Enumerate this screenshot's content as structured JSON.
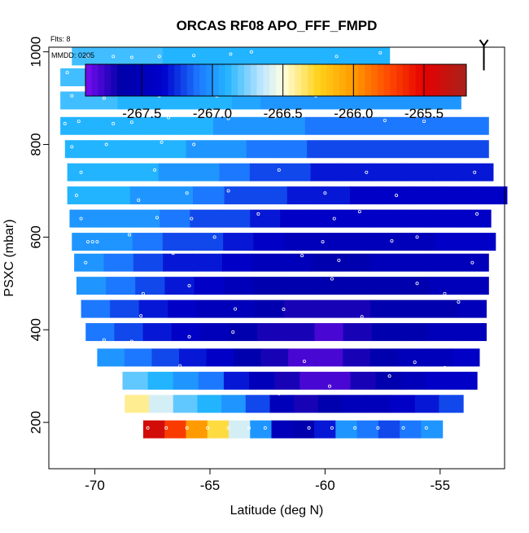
{
  "chart_data": {
    "type": "heatmap",
    "title": "ORCAS RF08 APO_FFF_FMPD",
    "subtitle": "Flts: 8",
    "annotation": "MMDD: 0205",
    "xlabel": "Latitude (deg N)",
    "ylabel": "PSXC (mbar)",
    "xlim": [
      -72,
      -52.2
    ],
    "ylim": [
      1010,
      100
    ],
    "x_ticks": [
      -70,
      -65,
      -60,
      -55
    ],
    "x_tick_labels": [
      "-70",
      "-65",
      "-60",
      "-55"
    ],
    "y_ticks": [
      200,
      400,
      600,
      800,
      1000
    ],
    "y_tick_labels": [
      "200",
      "400",
      "600",
      "800",
      "1000"
    ],
    "colorbar": {
      "range": [
        -267.9,
        -265.2
      ],
      "ticks": [
        -267.5,
        -267.0,
        -266.5,
        -266.0,
        -265.5
      ],
      "tick_labels": [
        "-267.5",
        "-267.0",
        "-266.5",
        "-266.0",
        "-265.5"
      ],
      "stops": [
        {
          "v": -267.9,
          "color": "#7a0cf0"
        },
        {
          "v": -267.65,
          "color": "#0000a8"
        },
        {
          "v": -267.35,
          "color": "#0000cc"
        },
        {
          "v": -267.1,
          "color": "#1c78ff"
        },
        {
          "v": -266.9,
          "color": "#22b4ff"
        },
        {
          "v": -266.65,
          "color": "#bfe6ff"
        },
        {
          "v": -266.5,
          "color": "#ffffe0"
        },
        {
          "v": -266.25,
          "color": "#ffd21a"
        },
        {
          "v": -266.0,
          "color": "#ff9a00"
        },
        {
          "v": -265.75,
          "color": "#ff4a00"
        },
        {
          "v": -265.5,
          "color": "#e60000"
        },
        {
          "v": -265.2,
          "color": "#a8231c"
        }
      ]
    },
    "bands": [
      {
        "p": 185,
        "x_start": -67.9,
        "x_end": -54.9,
        "values": [
          -265.4,
          -265.7,
          -266.0,
          -266.3,
          -266.6,
          -267.0,
          -267.5,
          -267.6,
          -267.3,
          -267.0,
          -267.1,
          -267.2,
          -267.1,
          -267.0
        ]
      },
      {
        "p": 240,
        "x_start": -68.7,
        "x_end": -54.0,
        "values": [
          -266.4,
          -266.6,
          -266.8,
          -266.9,
          -267.0,
          -267.2,
          -267.5,
          -267.7,
          -267.6,
          -267.5,
          -267.5,
          -267.4,
          -267.3,
          -267.2
        ]
      },
      {
        "p": 290,
        "x_start": -68.8,
        "x_end": -53.4,
        "values": [
          -266.8,
          -266.9,
          -267.0,
          -267.1,
          -267.3,
          -267.5,
          -267.7,
          -267.8,
          -267.8,
          -267.7,
          -267.6,
          -267.5,
          -267.4,
          -267.4
        ]
      },
      {
        "p": 340,
        "x_start": -69.9,
        "x_end": -53.3,
        "values": [
          -267.0,
          -267.1,
          -267.2,
          -267.3,
          -267.4,
          -267.6,
          -267.7,
          -267.8,
          -267.8,
          -267.7,
          -267.6,
          -267.5,
          -267.5,
          -267.4
        ]
      },
      {
        "p": 395,
        "x_start": -70.4,
        "x_end": -53.0,
        "values": [
          -267.1,
          -267.2,
          -267.3,
          -267.4,
          -267.5,
          -267.6,
          -267.7,
          -267.7,
          -267.8,
          -267.7,
          -267.6,
          -267.6,
          -267.5,
          -267.5
        ]
      },
      {
        "p": 445,
        "x_start": -70.6,
        "x_end": -53.0,
        "values": [
          -267.1,
          -267.2,
          -267.3,
          -267.4,
          -267.5,
          -267.5,
          -267.6,
          -267.7,
          -267.7,
          -267.7,
          -267.6,
          -267.6,
          -267.6,
          -267.5
        ]
      },
      {
        "p": 495,
        "x_start": -70.8,
        "x_end": -52.9,
        "values": [
          -267.0,
          -267.1,
          -267.2,
          -267.3,
          -267.4,
          -267.5,
          -267.6,
          -267.6,
          -267.6,
          -267.6,
          -267.6,
          -267.6,
          -267.5,
          -267.5
        ]
      },
      {
        "p": 545,
        "x_start": -70.9,
        "x_end": -52.9,
        "values": [
          -267.0,
          -267.1,
          -267.2,
          -267.3,
          -267.3,
          -267.4,
          -267.5,
          -267.5,
          -267.6,
          -267.6,
          -267.5,
          -267.5,
          -267.5,
          -267.5
        ]
      },
      {
        "p": 590,
        "x_start": -71.0,
        "x_end": -52.6,
        "values": [
          -267.0,
          -267.0,
          -267.1,
          -267.2,
          -267.2,
          -267.3,
          -267.4,
          -267.5,
          -267.5,
          -267.5,
          -267.5,
          -267.5,
          -267.4,
          -267.4
        ]
      },
      {
        "p": 640,
        "x_start": -71.1,
        "x_end": -52.8,
        "values": [
          -267.0,
          -267.0,
          -267.0,
          -267.1,
          -267.2,
          -267.2,
          -267.3,
          -267.4,
          -267.4,
          -267.4,
          -267.4,
          -267.4,
          -267.4,
          -267.4
        ]
      },
      {
        "p": 690,
        "x_start": -71.2,
        "x_end": -52.1,
        "values": [
          -266.9,
          -266.9,
          -267.0,
          -267.0,
          -267.1,
          -267.2,
          -267.2,
          -267.3,
          -267.3,
          -267.4,
          -267.4,
          -267.4,
          -267.4,
          -267.4
        ]
      },
      {
        "p": 740,
        "x_start": -71.2,
        "x_end": -52.7,
        "values": [
          -266.9,
          -266.9,
          -266.9,
          -267.0,
          -267.0,
          -267.1,
          -267.2,
          -267.2,
          -267.3,
          -267.3,
          -267.3,
          -267.3,
          -267.3,
          -267.3
        ]
      },
      {
        "p": 790,
        "x_start": -71.3,
        "x_end": -52.9,
        "values": [
          -266.9,
          -266.9,
          -266.9,
          -266.9,
          -267.0,
          -267.0,
          -267.1,
          -267.1,
          -267.2,
          -267.2,
          -267.2,
          -267.2,
          -267.2,
          -267.2
        ]
      },
      {
        "p": 840,
        "x_start": -71.5,
        "x_end": -52.9,
        "values": [
          -266.9,
          -266.9,
          -266.9,
          -266.9,
          -266.9,
          -267.0,
          -267.0,
          -267.0,
          -267.1,
          -267.1,
          -267.1,
          -267.1,
          -267.1,
          -267.1
        ]
      },
      {
        "p": 895,
        "x_start": -71.5,
        "x_end": -54.1,
        "values": [
          -266.85,
          -266.85,
          -266.9,
          -266.9,
          -266.9,
          -266.9,
          -266.95,
          -267.0,
          -267.0,
          -267.0,
          -267.0,
          -267.0,
          -267.0,
          -267.0
        ]
      },
      {
        "p": 945,
        "x_start": -71.5,
        "x_end": -55.4,
        "values": [
          -266.85,
          -266.85,
          -266.85,
          -266.9,
          -266.9,
          -266.9,
          -266.9,
          -266.9,
          -266.95,
          -266.95,
          -266.95,
          -266.95,
          -266.95,
          -266.95
        ]
      },
      {
        "p": 990,
        "x_start": -71.0,
        "x_end": -57.2,
        "values": [
          -266.85,
          -266.85,
          -266.85,
          -266.85,
          -266.9,
          -266.9,
          -266.9,
          -266.9,
          -266.9,
          -266.9,
          -266.9,
          -266.9,
          -266.9,
          -266.9
        ]
      }
    ],
    "sample_points": [
      {
        "x": -67.7,
        "p": 188
      },
      {
        "x": -66.9,
        "p": 188
      },
      {
        "x": -66.0,
        "p": 188
      },
      {
        "x": -65.1,
        "p": 188
      },
      {
        "x": -64.2,
        "p": 188
      },
      {
        "x": -63.3,
        "p": 188
      },
      {
        "x": -62.6,
        "p": 188
      },
      {
        "x": -60.7,
        "p": 188
      },
      {
        "x": -59.7,
        "p": 188
      },
      {
        "x": -58.7,
        "p": 188
      },
      {
        "x": -57.7,
        "p": 188
      },
      {
        "x": -56.6,
        "p": 188
      },
      {
        "x": -55.6,
        "p": 188
      },
      {
        "x": -62.0,
        "p": 262
      },
      {
        "x": -59.8,
        "p": 278
      },
      {
        "x": -57.2,
        "p": 300
      },
      {
        "x": -66.3,
        "p": 322
      },
      {
        "x": -60.9,
        "p": 332
      },
      {
        "x": -56.1,
        "p": 330
      },
      {
        "x": -54.8,
        "p": 318
      },
      {
        "x": -69.6,
        "p": 378
      },
      {
        "x": -68.4,
        "p": 375
      },
      {
        "x": -65.9,
        "p": 385
      },
      {
        "x": -64.0,
        "p": 395
      },
      {
        "x": -60.0,
        "p": 368
      },
      {
        "x": -57.3,
        "p": 365
      },
      {
        "x": -68.0,
        "p": 430
      },
      {
        "x": -66.5,
        "p": 420
      },
      {
        "x": -63.9,
        "p": 445
      },
      {
        "x": -61.8,
        "p": 444
      },
      {
        "x": -58.4,
        "p": 428
      },
      {
        "x": -54.2,
        "p": 460
      },
      {
        "x": -67.9,
        "p": 478
      },
      {
        "x": -65.9,
        "p": 495
      },
      {
        "x": -59.7,
        "p": 510
      },
      {
        "x": -56.0,
        "p": 500
      },
      {
        "x": -54.8,
        "p": 478
      },
      {
        "x": -70.4,
        "p": 545
      },
      {
        "x": -66.6,
        "p": 565
      },
      {
        "x": -61.0,
        "p": 560
      },
      {
        "x": -59.4,
        "p": 550
      },
      {
        "x": -53.6,
        "p": 545
      },
      {
        "x": -70.3,
        "p": 590
      },
      {
        "x": -70.1,
        "p": 590
      },
      {
        "x": -69.9,
        "p": 590
      },
      {
        "x": -68.5,
        "p": 605
      },
      {
        "x": -64.8,
        "p": 600
      },
      {
        "x": -60.1,
        "p": 590
      },
      {
        "x": -57.1,
        "p": 592
      },
      {
        "x": -56.0,
        "p": 600
      },
      {
        "x": -70.6,
        "p": 640
      },
      {
        "x": -67.3,
        "p": 642
      },
      {
        "x": -65.8,
        "p": 640
      },
      {
        "x": -62.9,
        "p": 650
      },
      {
        "x": -59.6,
        "p": 640
      },
      {
        "x": -58.5,
        "p": 655
      },
      {
        "x": -53.4,
        "p": 650
      },
      {
        "x": -70.8,
        "p": 690
      },
      {
        "x": -68.1,
        "p": 680
      },
      {
        "x": -66.0,
        "p": 695
      },
      {
        "x": -64.2,
        "p": 700
      },
      {
        "x": -60.0,
        "p": 695
      },
      {
        "x": -56.9,
        "p": 690
      },
      {
        "x": -70.6,
        "p": 740
      },
      {
        "x": -67.4,
        "p": 745
      },
      {
        "x": -62.0,
        "p": 745
      },
      {
        "x": -58.2,
        "p": 740
      },
      {
        "x": -53.5,
        "p": 740
      },
      {
        "x": -71.0,
        "p": 795
      },
      {
        "x": -69.5,
        "p": 800
      },
      {
        "x": -67.1,
        "p": 805
      },
      {
        "x": -65.7,
        "p": 800
      },
      {
        "x": -71.3,
        "p": 845
      },
      {
        "x": -70.7,
        "p": 850
      },
      {
        "x": -69.2,
        "p": 845
      },
      {
        "x": -68.4,
        "p": 848
      },
      {
        "x": -66.8,
        "p": 858
      },
      {
        "x": -64.2,
        "p": 856
      },
      {
        "x": -62.2,
        "p": 860
      },
      {
        "x": -57.4,
        "p": 852
      },
      {
        "x": -55.7,
        "p": 850
      },
      {
        "x": -71.0,
        "p": 905
      },
      {
        "x": -69.6,
        "p": 900
      },
      {
        "x": -67.2,
        "p": 905
      },
      {
        "x": -64.7,
        "p": 905
      },
      {
        "x": -60.4,
        "p": 905
      },
      {
        "x": -58.6,
        "p": 915
      },
      {
        "x": -71.2,
        "p": 955
      },
      {
        "x": -69.1,
        "p": 950
      },
      {
        "x": -66.9,
        "p": 962
      },
      {
        "x": -63.8,
        "p": 960
      },
      {
        "x": -59.4,
        "p": 950
      },
      {
        "x": -57.5,
        "p": 955
      },
      {
        "x": -70.3,
        "p": 990
      },
      {
        "x": -69.2,
        "p": 990
      },
      {
        "x": -68.4,
        "p": 988
      },
      {
        "x": -67.2,
        "p": 990
      },
      {
        "x": -65.7,
        "p": 992
      },
      {
        "x": -64.1,
        "p": 995
      },
      {
        "x": -63.2,
        "p": 1000
      },
      {
        "x": -59.5,
        "p": 990
      },
      {
        "x": -57.6,
        "p": 998
      }
    ],
    "arrow": {
      "x": -53.1,
      "p_from": 960,
      "p_to": 1010
    }
  }
}
